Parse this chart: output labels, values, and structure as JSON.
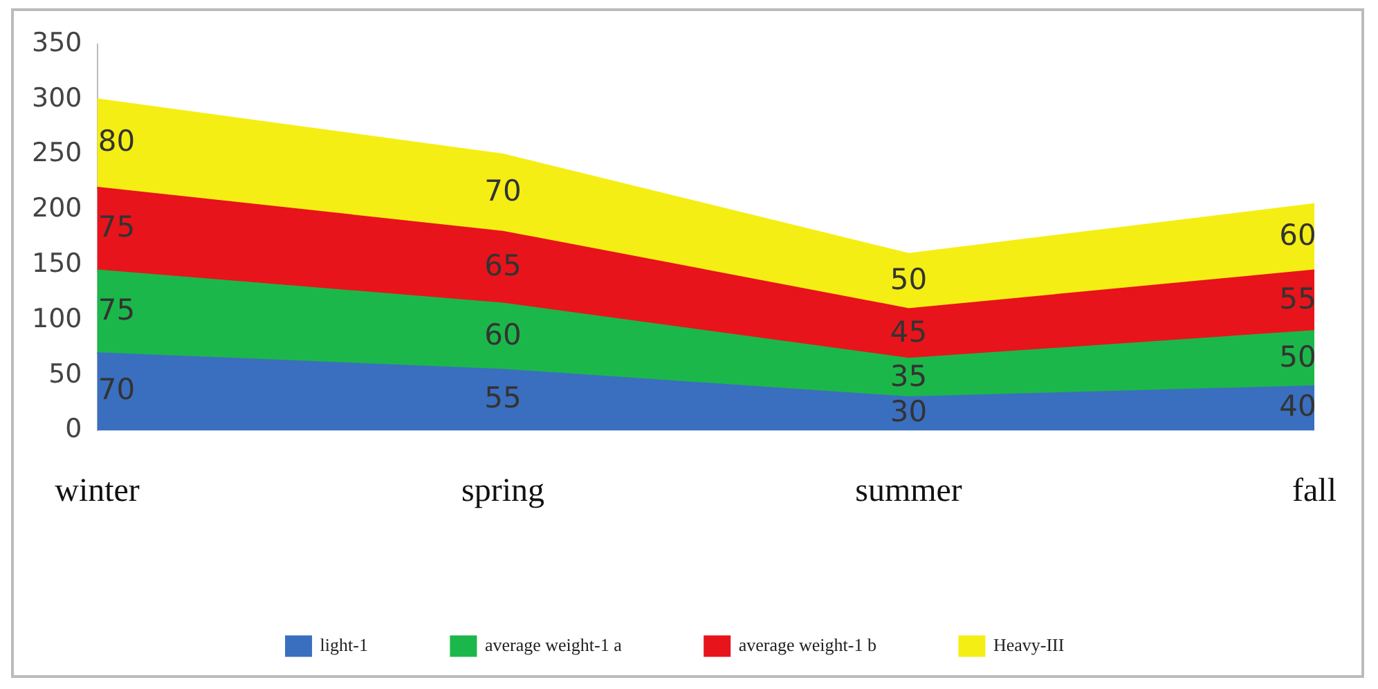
{
  "chart_data": {
    "type": "area",
    "stacked": true,
    "categories": [
      "winter",
      "spring",
      "summer",
      "fall"
    ],
    "series": [
      {
        "name": "light-1",
        "color": "#3a6fbf",
        "values": [
          70,
          55,
          30,
          40
        ]
      },
      {
        "name": "average weight-1 a",
        "color": "#1cb74a",
        "values": [
          75,
          60,
          35,
          50
        ]
      },
      {
        "name": "average weight-1 b",
        "color": "#e8141b",
        "values": [
          75,
          65,
          45,
          55
        ]
      },
      {
        "name": "Heavy-III",
        "color": "#f5ee14",
        "values": [
          80,
          70,
          50,
          60
        ]
      }
    ],
    "ylim": [
      0,
      350
    ],
    "yticks": [
      0,
      50,
      100,
      150,
      200,
      250,
      300,
      350
    ],
    "grid": false,
    "legend": "bottom",
    "data_labels": true,
    "marker": "none"
  }
}
